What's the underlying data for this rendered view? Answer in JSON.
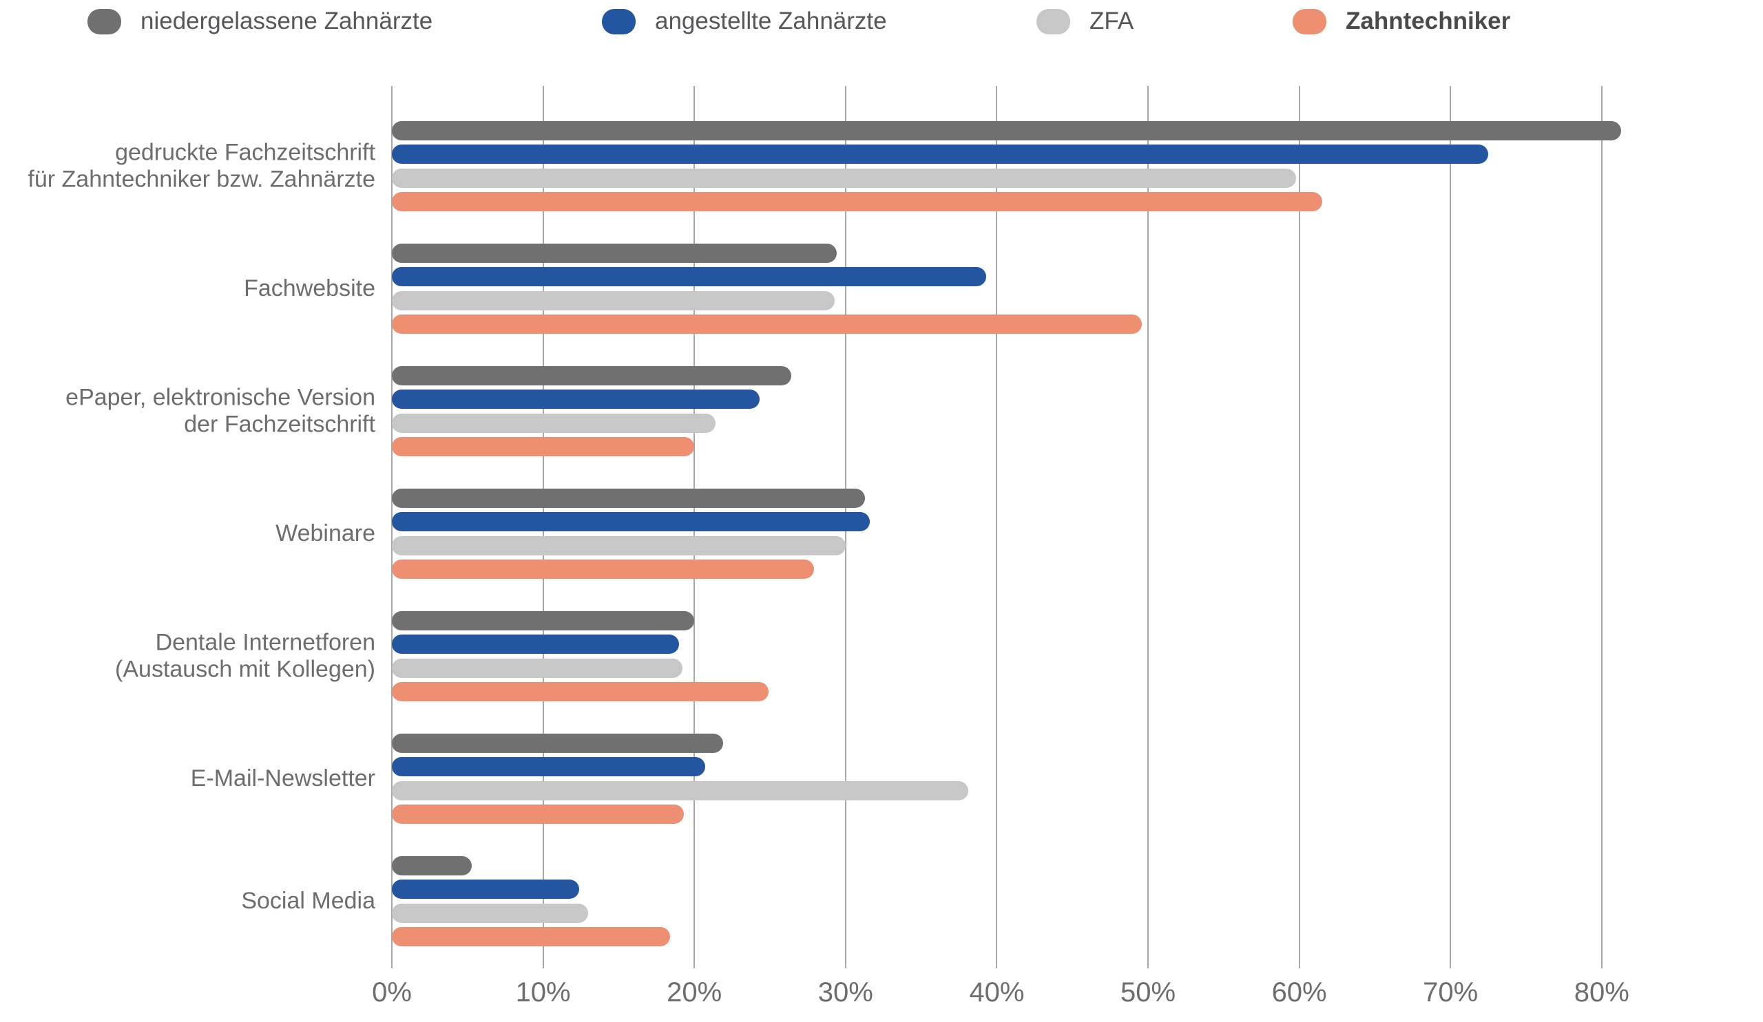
{
  "chart_data": {
    "type": "bar",
    "orientation": "horizontal",
    "value_unit": "%",
    "grid": true,
    "legend_position": "top",
    "xlim": [
      0,
      90
    ],
    "x_ticks": [
      {
        "value": 0,
        "label": "0%"
      },
      {
        "value": 10,
        "label": "10%"
      },
      {
        "value": 20,
        "label": "20%"
      },
      {
        "value": 30,
        "label": "30%"
      },
      {
        "value": 40,
        "label": "40%"
      },
      {
        "value": 50,
        "label": "50%"
      },
      {
        "value": 60,
        "label": "60%"
      },
      {
        "value": 70,
        "label": "70%"
      },
      {
        "value": 80,
        "label": "80%"
      }
    ],
    "categories": [
      "gedruckte Fachzeitschrift\nfür Zahntechniker bzw. Zahnärzte",
      "Fachwebsite",
      "ePaper, elektronische Version\nder Fachzeitschrift",
      "Webinare",
      "Dentale Internetforen\n(Austausch mit Kollegen)",
      "E-Mail-Newsletter",
      "Social Media"
    ],
    "series": [
      {
        "name": "niedergelassene Zahnärzte",
        "color": "#717070",
        "emphasis": false,
        "values": [
          81.3,
          29.4,
          26.4,
          31.3,
          20.0,
          21.9,
          5.3
        ]
      },
      {
        "name": "angestellte Zahnärzte",
        "color": "#2355a0",
        "emphasis": false,
        "values": [
          72.5,
          39.3,
          24.3,
          31.6,
          19.0,
          20.7,
          12.4
        ]
      },
      {
        "name": "ZFA",
        "color": "#c8c7c7",
        "emphasis": false,
        "values": [
          59.8,
          29.3,
          21.4,
          30.0,
          19.2,
          38.1,
          13.0
        ]
      },
      {
        "name": "Zahntechniker",
        "color": "#ee8f72",
        "emphasis": true,
        "values": [
          61.5,
          49.6,
          20.0,
          27.9,
          24.9,
          19.3,
          18.4
        ]
      }
    ]
  }
}
